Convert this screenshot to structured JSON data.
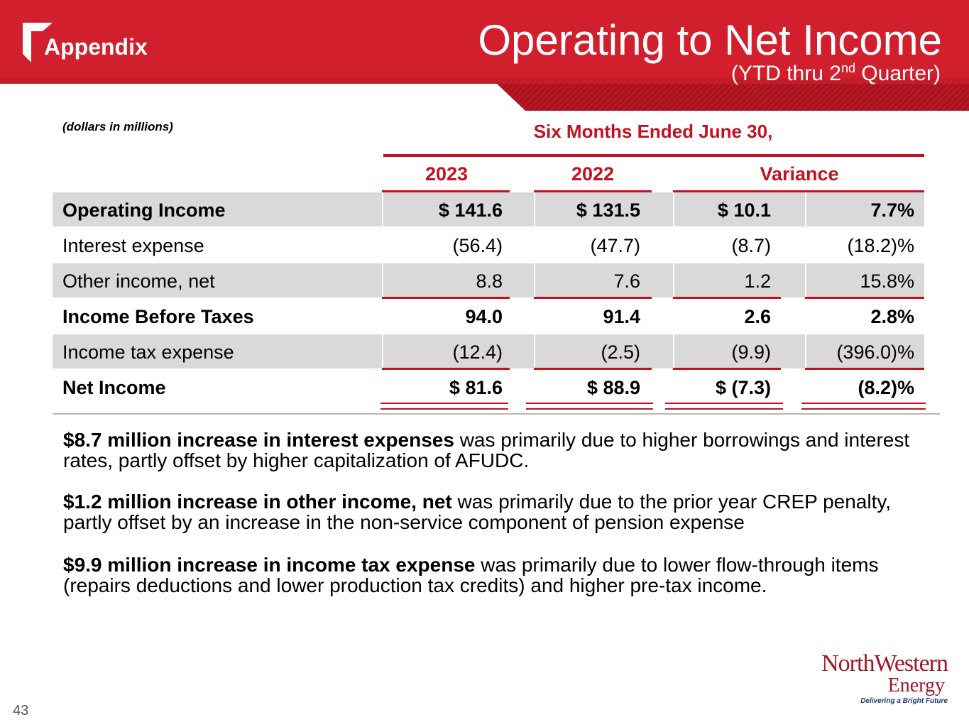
{
  "header": {
    "section": "Appendix",
    "title": "Operating to Net Income",
    "subtitle_pre": "(YTD thru 2",
    "subtitle_sup": "nd",
    "subtitle_post": " Quarter)"
  },
  "table": {
    "units": "(dollars in millions)",
    "period": "Six Months Ended June 30,",
    "columns": [
      "2023",
      "2022",
      "Variance"
    ],
    "rows": [
      {
        "label": "Operating Income",
        "y2023": "$ 141.6",
        "y2022": "$ 131.5",
        "var": "$ 10.1",
        "pct": "7.7%"
      },
      {
        "label": "Interest expense",
        "y2023": "(56.4)",
        "y2022": "(47.7)",
        "var": "(8.7)",
        "pct": "(18.2)%"
      },
      {
        "label": "Other income, net",
        "y2023": "8.8",
        "y2022": "7.6",
        "var": "1.2",
        "pct": "15.8%"
      },
      {
        "label": "Income Before Taxes",
        "y2023": "94.0",
        "y2022": "91.4",
        "var": "2.6",
        "pct": "2.8%"
      },
      {
        "label": "Income tax expense",
        "y2023": "(12.4)",
        "y2022": "(2.5)",
        "var": "(9.9)",
        "pct": "(396.0)%"
      },
      {
        "label": "Net Income",
        "y2023": "$ 81.6",
        "y2022": "$ 88.9",
        "var": "$ (7.3)",
        "pct": "(8.2)%"
      }
    ]
  },
  "notes": [
    {
      "bold": "$8.7 million increase in interest expenses",
      "text": " was primarily due to higher borrowings and interest rates, partly offset by higher capitalization of AFUDC."
    },
    {
      "bold": "$1.2 million increase in other income, net",
      "text": " was primarily due to the prior year CREP penalty, partly offset by an increase in the non-service component of pension expense"
    },
    {
      "bold": "$9.9 million increase in income tax expense",
      "text": " was primarily due to lower flow-through items (repairs deductions and lower production tax credits) and higher pre-tax income."
    }
  ],
  "brand": {
    "name": "NorthWestern",
    "sub": "Energy",
    "tagline": "Delivering a Bright Future"
  },
  "page_number": "43",
  "colors": {
    "accent": "#d21f2d",
    "text_red": "#c0131f",
    "row_shade": "#d9d9d9"
  }
}
